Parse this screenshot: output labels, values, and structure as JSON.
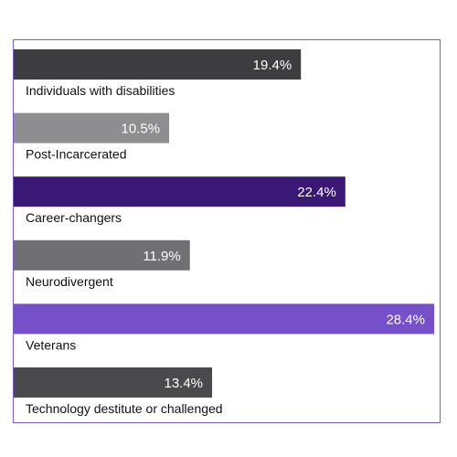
{
  "chart_data": {
    "type": "bar",
    "orientation": "horizontal",
    "categories": [
      "Individuals with disabilities",
      "Post-Incarcerated",
      "Career-changers",
      "Neurodivergent",
      "Veterans",
      "Technology destitute or challenged"
    ],
    "values": [
      19.4,
      10.5,
      22.4,
      11.9,
      28.4,
      13.4
    ],
    "value_labels": [
      "19.4%",
      "10.5%",
      "22.4%",
      "11.9%",
      "28.4%",
      "13.4%"
    ],
    "colors": [
      "#3d3d3f",
      "#8e8e90",
      "#3a1876",
      "#707072",
      "#7550c8",
      "#4a4a4c"
    ],
    "title": "",
    "xlabel": "",
    "ylabel": "",
    "xlim": [
      0,
      28.4
    ],
    "grid": false,
    "legend": "none"
  },
  "frame_color": "#7a5cd0"
}
